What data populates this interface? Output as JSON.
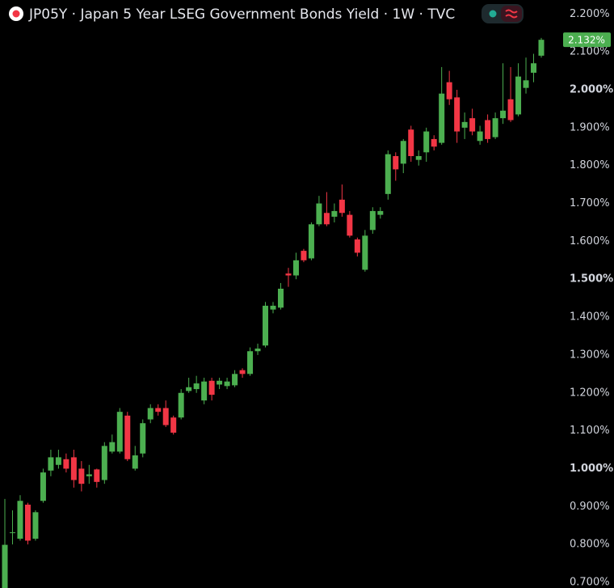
{
  "chart_data": {
    "type": "candlestick",
    "title": "JP05Y · Japan 5 Year LSEG Government Bonds Yield · 1W · TVC",
    "up_color": "#4caf50",
    "down_color": "#f23645",
    "open": [
      0.682,
      0.83,
      0.815,
      0.905,
      0.815,
      0.915,
      0.995,
      1.01,
      1.025,
      1.03,
      1.0,
      0.98,
      0.998,
      0.97,
      1.045,
      1.045,
      1.14,
      1.0,
      1.04,
      1.13,
      1.16,
      1.16,
      1.135,
      1.135,
      1.205,
      1.21,
      1.18,
      1.232,
      1.222,
      1.218,
      1.22,
      1.26,
      1.25,
      1.31,
      1.325,
      1.42,
      1.425,
      1.515,
      1.51,
      1.575,
      1.555,
      1.645,
      1.675,
      1.665,
      1.71,
      1.67,
      1.605,
      1.525,
      1.63,
      1.67,
      1.725,
      1.825,
      1.805,
      1.895,
      1.815,
      1.835,
      1.87,
      1.86,
      2.02,
      1.98,
      1.9,
      1.925,
      1.865,
      1.92,
      1.875,
      1.925,
      1.975,
      1.935,
      2.005,
      2.045,
      2.09
    ],
    "high": [
      0.92,
      0.89,
      0.93,
      0.91,
      0.89,
      1.0,
      1.05,
      1.05,
      1.04,
      1.05,
      1.02,
      1.01,
      1.0,
      1.07,
      1.09,
      1.16,
      1.15,
      1.06,
      1.13,
      1.17,
      1.17,
      1.18,
      1.14,
      1.21,
      1.24,
      1.245,
      1.24,
      1.24,
      1.24,
      1.24,
      1.26,
      1.265,
      1.32,
      1.33,
      1.44,
      1.44,
      1.49,
      1.53,
      1.57,
      1.58,
      1.65,
      1.72,
      1.73,
      1.7,
      1.75,
      1.68,
      1.61,
      1.63,
      1.69,
      1.69,
      1.84,
      1.835,
      1.87,
      1.905,
      1.84,
      1.9,
      1.88,
      2.06,
      2.05,
      2.0,
      1.94,
      1.95,
      1.905,
      1.935,
      1.94,
      2.07,
      2.06,
      2.07,
      2.085,
      2.095,
      2.137
    ],
    "low": [
      0.68,
      0.8,
      0.81,
      0.8,
      0.81,
      0.91,
      0.98,
      1.0,
      0.99,
      0.95,
      0.94,
      0.96,
      0.95,
      0.96,
      1.04,
      1.04,
      1.02,
      0.995,
      1.03,
      1.12,
      1.14,
      1.11,
      1.09,
      1.13,
      1.2,
      1.2,
      1.17,
      1.18,
      1.21,
      1.21,
      1.215,
      1.24,
      1.245,
      1.3,
      1.32,
      1.41,
      1.42,
      1.48,
      1.5,
      1.545,
      1.55,
      1.64,
      1.64,
      1.65,
      1.665,
      1.61,
      1.56,
      1.52,
      1.62,
      1.66,
      1.71,
      1.76,
      1.78,
      1.81,
      1.8,
      1.81,
      1.84,
      1.855,
      1.96,
      1.86,
      1.87,
      1.88,
      1.855,
      1.86,
      1.87,
      1.91,
      1.915,
      1.93,
      1.99,
      2.02,
      2.085
    ],
    "close": [
      0.799,
      0.832,
      0.915,
      0.81,
      0.885,
      0.99,
      1.03,
      1.03,
      1.0,
      0.97,
      0.96,
      0.985,
      0.965,
      1.06,
      1.07,
      1.15,
      1.025,
      1.035,
      1.12,
      1.16,
      1.15,
      1.115,
      1.095,
      1.2,
      1.215,
      1.225,
      1.23,
      1.195,
      1.232,
      1.23,
      1.25,
      1.25,
      1.31,
      1.317,
      1.43,
      1.43,
      1.475,
      1.51,
      1.55,
      1.55,
      1.645,
      1.7,
      1.645,
      1.68,
      1.675,
      1.615,
      1.57,
      1.615,
      1.68,
      1.68,
      1.83,
      1.79,
      1.865,
      1.825,
      1.825,
      1.89,
      1.85,
      1.99,
      1.975,
      1.89,
      1.915,
      1.89,
      1.89,
      1.87,
      1.925,
      1.945,
      1.92,
      2.035,
      2.025,
      2.07,
      2.132
    ],
    "ylim": [
      0.685,
      2.237
    ],
    "yticks": [
      {
        "value": 0.7,
        "label": "0.700%"
      },
      {
        "value": 0.8,
        "label": "0.800%"
      },
      {
        "value": 0.9,
        "label": "0.900%"
      },
      {
        "value": 1.0,
        "label": "1.000%"
      },
      {
        "value": 1.1,
        "label": "1.100%"
      },
      {
        "value": 1.2,
        "label": "1.200%"
      },
      {
        "value": 1.3,
        "label": "1.300%"
      },
      {
        "value": 1.4,
        "label": "1.400%"
      },
      {
        "value": 1.5,
        "label": "1.500%"
      },
      {
        "value": 1.6,
        "label": "1.600%"
      },
      {
        "value": 1.7,
        "label": "1.700%"
      },
      {
        "value": 1.8,
        "label": "1.800%"
      },
      {
        "value": 1.9,
        "label": "1.900%"
      },
      {
        "value": 2.0,
        "label": "2.000%"
      },
      {
        "value": 2.1,
        "label": "2.100%"
      },
      {
        "value": 2.2,
        "label": "2.200%"
      }
    ],
    "last_price": {
      "value": 2.132,
      "label": "2.132%"
    }
  }
}
